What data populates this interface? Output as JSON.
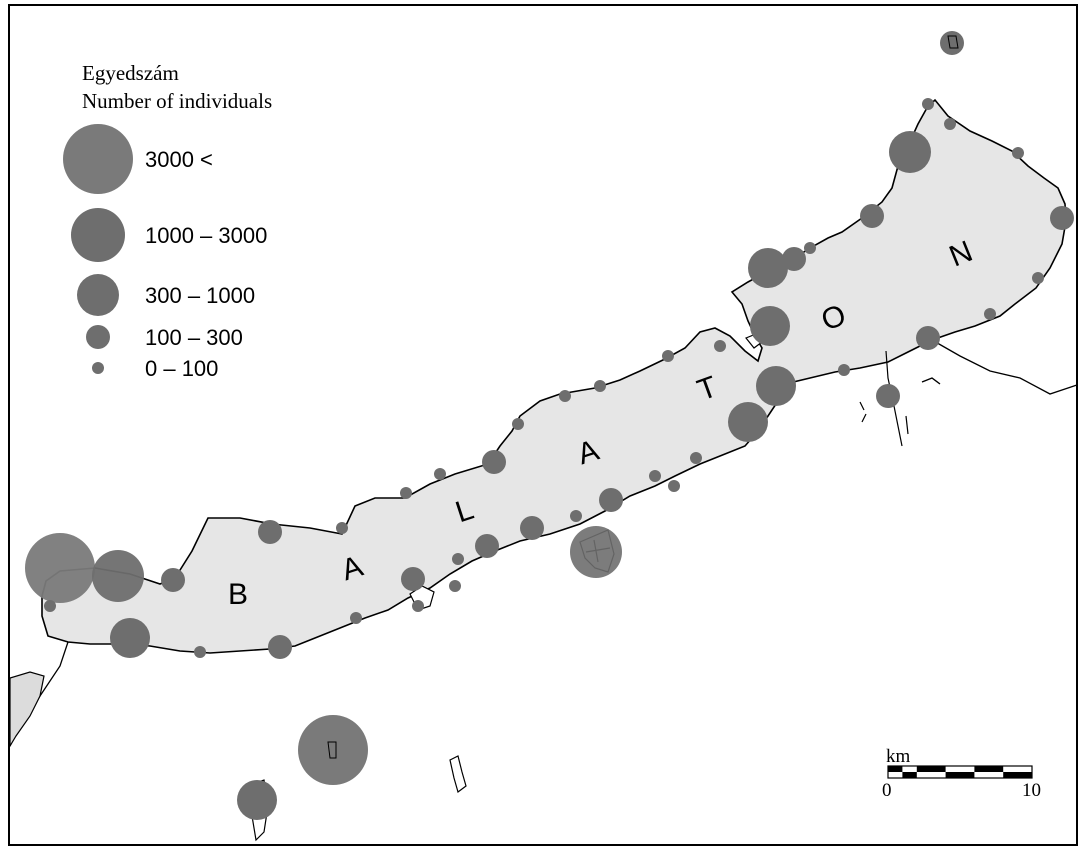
{
  "legend": {
    "title_hu": "Egyedszám",
    "title_en": "Number of individuals",
    "classes": [
      {
        "label": "3000 <",
        "size_rank": 5
      },
      {
        "label": "1000 – 3000",
        "size_rank": 4
      },
      {
        "label": "300 – 1000",
        "size_rank": 3
      },
      {
        "label": "100 – 300",
        "size_rank": 2
      },
      {
        "label": "0 – 100",
        "size_rank": 1
      }
    ]
  },
  "lake_label_letters": [
    "B",
    "A",
    "L",
    "A",
    "T",
    "O",
    "N"
  ],
  "scale_bar": {
    "unit": "km",
    "start_label": "0",
    "end_label": "10"
  },
  "colors": {
    "lake_fill": "#e6e6e6",
    "marker_fill": "#6e6e6e",
    "marker_fill_large": "#7a7a7a",
    "outline": "#000000"
  }
}
